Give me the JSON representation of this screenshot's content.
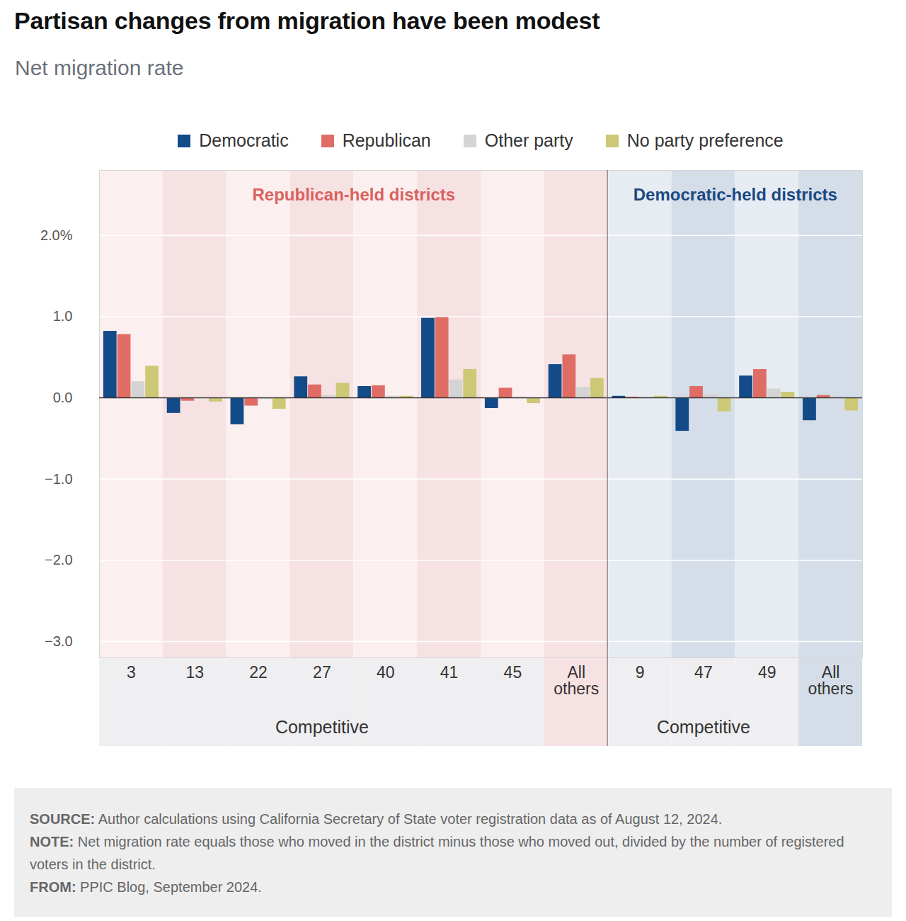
{
  "chart_data": {
    "type": "bar",
    "title": "Partisan changes from migration have been modest",
    "subtitle": "Net migration rate",
    "categories": [
      "3",
      "13",
      "22",
      "27",
      "40",
      "41",
      "45",
      "All others",
      "9",
      "47",
      "49",
      "All others"
    ],
    "category_groups": [
      "Republican-held districts",
      "Republican-held districts",
      "Republican-held districts",
      "Republican-held districts",
      "Republican-held districts",
      "Republican-held districts",
      "Republican-held districts",
      "Republican-held districts",
      "Democratic-held districts",
      "Democratic-held districts",
      "Democratic-held districts",
      "Democratic-held districts"
    ],
    "category_subgroups": [
      "Competitive",
      "Competitive",
      "Competitive",
      "Competitive",
      "Competitive",
      "Competitive",
      "Competitive",
      null,
      "Competitive",
      "Competitive",
      "Competitive",
      null
    ],
    "series": [
      {
        "name": "Democratic",
        "color": "#134a88",
        "values": [
          0.82,
          -0.19,
          -0.33,
          0.26,
          0.14,
          0.98,
          -0.13,
          0.41,
          0.02,
          -0.41,
          0.27,
          -0.28
        ]
      },
      {
        "name": "Republican",
        "color": "#e06c66",
        "values": [
          0.78,
          -0.04,
          -0.1,
          0.16,
          0.15,
          0.99,
          0.12,
          0.53,
          0.01,
          0.14,
          0.35,
          0.03
        ]
      },
      {
        "name": "Other party",
        "color": "#d4d4d4",
        "values": [
          0.2,
          0.0,
          -0.02,
          0.03,
          0.02,
          0.22,
          0.01,
          0.13,
          0.01,
          0.04,
          0.11,
          0.01
        ]
      },
      {
        "name": "No party preference",
        "color": "#cdc875",
        "values": [
          0.39,
          -0.05,
          -0.14,
          0.18,
          0.02,
          0.35,
          -0.07,
          0.24,
          0.02,
          -0.17,
          0.07,
          -0.16
        ]
      }
    ],
    "ylim": [
      -3.2,
      2.8
    ],
    "yticks": [
      {
        "value": -3,
        "label": "−3.0"
      },
      {
        "value": -2,
        "label": "−2.0"
      },
      {
        "value": -1,
        "label": "−1.0"
      },
      {
        "value": 0,
        "label": "0.0"
      },
      {
        "value": 1,
        "label": "1.0"
      },
      {
        "value": 2,
        "label": "2.0%"
      }
    ],
    "grid": true,
    "legend": "top",
    "caption": [
      {
        "label": "SOURCE:",
        "text": "Author calculations using California Secretary of State voter registration data as of August 12, 2024."
      },
      {
        "label": "NOTE:",
        "text": "Net migration rate equals those who moved in the district minus those who moved out, divided by the number of registered voters in the district."
      },
      {
        "label": "FROM:",
        "text": "PPIC Blog, September 2024."
      }
    ]
  }
}
